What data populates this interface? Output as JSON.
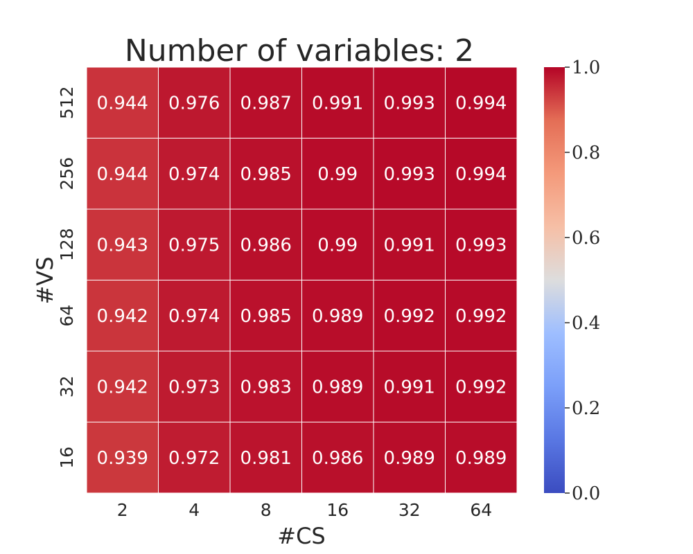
{
  "chart_data": {
    "type": "heatmap",
    "title": "Number of variables: 2",
    "xlabel": "#CS",
    "ylabel": "#VS",
    "x_categories": [
      "2",
      "4",
      "8",
      "16",
      "32",
      "64"
    ],
    "y_categories": [
      "512",
      "256",
      "128",
      "64",
      "32",
      "16"
    ],
    "values": [
      [
        0.944,
        0.976,
        0.987,
        0.991,
        0.993,
        0.994
      ],
      [
        0.944,
        0.974,
        0.985,
        0.99,
        0.993,
        0.994
      ],
      [
        0.943,
        0.975,
        0.986,
        0.99,
        0.991,
        0.993
      ],
      [
        0.942,
        0.974,
        0.985,
        0.989,
        0.992,
        0.992
      ],
      [
        0.942,
        0.973,
        0.983,
        0.989,
        0.991,
        0.992
      ],
      [
        0.939,
        0.972,
        0.981,
        0.986,
        0.989,
        0.989
      ]
    ],
    "colormap": "coolwarm",
    "vmin": 0.0,
    "vmax": 1.0,
    "colorbar_ticks": [
      "0.0",
      "0.2",
      "0.4",
      "0.6",
      "0.8",
      "1.0"
    ],
    "grid": true
  }
}
